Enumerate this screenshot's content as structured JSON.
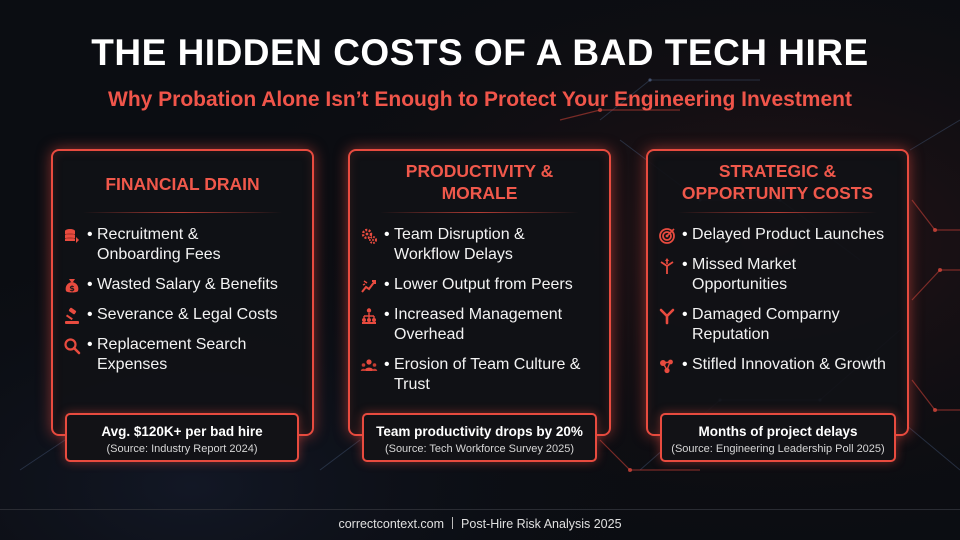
{
  "title": "THE HIDDEN COSTS OF A BAD TECH HIRE",
  "subtitle": "Why Probation Alone Isn’t Enough to Protect Your Engineering Investment",
  "colors": {
    "accent": "#e84b3f",
    "accent_text": "#f0584b",
    "background": "#0b0d12"
  },
  "cards": [
    {
      "title_lines": [
        "FINANCIAL DRAIN"
      ],
      "items": [
        {
          "icon": "coins-stack-icon",
          "lines": [
            "Recruitment &",
            "Onboarding Fees"
          ]
        },
        {
          "icon": "money-bag-icon",
          "lines": [
            "Wasted Salary & Benefits"
          ]
        },
        {
          "icon": "legal-gavel-icon",
          "lines": [
            "Severance & Legal Costs"
          ]
        },
        {
          "icon": "search-icon",
          "lines": [
            "Replacement Search",
            "Expenses"
          ]
        }
      ],
      "stat": {
        "main": "Avg. $120K+ per bad hire",
        "source": "(Source: Industry Report 2024)"
      }
    },
    {
      "title_lines": [
        "PRODUCTIVITY &",
        "MORALE"
      ],
      "items": [
        {
          "icon": "gears-icon",
          "lines": [
            "Team Disruption &",
            "Workflow Delays"
          ]
        },
        {
          "icon": "broken-chart-icon",
          "lines": [
            "Lower Output from Peers"
          ]
        },
        {
          "icon": "org-hierarchy-icon",
          "lines": [
            "Increased Management",
            "Overhead"
          ]
        },
        {
          "icon": "team-people-icon",
          "lines": [
            "Erosion of Team Culture &",
            "Trust"
          ]
        }
      ],
      "stat": {
        "main": "Team productivity drops by 20%",
        "source": "(Source: Tech Workforce Survey 2025)"
      }
    },
    {
      "title_lines": [
        "STRATEGIC &",
        "OPPORTUNITY COSTS"
      ],
      "items": [
        {
          "icon": "target-icon",
          "lines": [
            "Delayed Product Launches"
          ]
        },
        {
          "icon": "split-arrows-icon",
          "lines": [
            "Missed Market",
            "Opportunities"
          ]
        },
        {
          "icon": "fork-branch-icon",
          "lines": [
            "Damaged Comparny",
            "Reputation"
          ]
        },
        {
          "icon": "molecule-network-icon",
          "lines": [
            "Stifled Innovation & Growth"
          ]
        }
      ],
      "stat": {
        "main": "Months of project delays",
        "source": "(Source: Engineering Leadership Poll 2025)"
      }
    }
  ],
  "footer": {
    "site": "correctcontext.com",
    "label": "Post-Hire Risk Analysis 2025"
  }
}
